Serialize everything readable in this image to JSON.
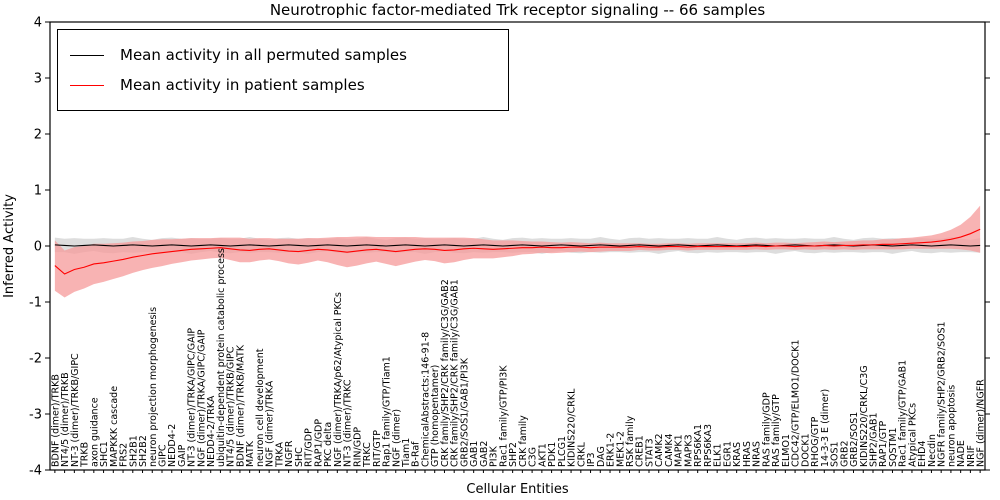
{
  "title": "Neurotrophic factor-mediated Trk receptor signaling -- 66 samples",
  "xlabel": "Cellular Entities",
  "ylabel": "Inferred Activity",
  "legend": {
    "permuted_label": "Mean activity in all permuted samples",
    "patient_label": "Mean activity in patient samples"
  },
  "colors": {
    "permuted_line": "#000000",
    "permuted_band": "#d9d9d9",
    "patient_line": "#ff0000",
    "patient_band": "#f59a9a",
    "axis": "#000000"
  },
  "chart_data": {
    "type": "line",
    "title": "Neurotrophic factor-mediated Trk receptor signaling -- 66 samples",
    "xlabel": "Cellular Entities",
    "ylabel": "Inferred Activity",
    "ylim": [
      -4,
      4
    ],
    "yticks": [
      -4,
      -3,
      -2,
      -1,
      0,
      1,
      2,
      3,
      4
    ],
    "grid": false,
    "legend_position": "upper left",
    "categories": [
      "BDNF (dimer)/TRKB",
      "NT4/5 (dimer)/TRKB",
      "NT-3 (dimer)/TRKB/GIPC",
      "TRKB",
      "axon guidance",
      "SHC1",
      "MAPKKK cascade",
      "FRS2",
      "SH2B1",
      "SH2B2",
      "neuron projection morphogenesis",
      "GIPC",
      "NEDD4-2",
      "GAIP",
      "NT-3 (dimer)/TRKA/GIPC/GAIP",
      "NGF (dimer)/TRKA/GIPC/GAIP",
      "NEDD4-2/TRKA",
      "ubiquitin-dependent protein catabolic process",
      "NT4/5 (dimer)/TRKB/GIPC",
      "BDNF (dimer)/TRKB/MATK",
      "MATK",
      "neuron cell development",
      "NGF (dimer)/TRKA",
      "TRKA",
      "NGFR",
      "SHC",
      "RIT/GDP",
      "RAP1/GDP",
      "PKC delta",
      "NGF (dimer)/TRKA/p62/Atypical PKCs",
      "NT-3 (dimer)/TRKC",
      "RIN/GDP",
      "TRKC",
      "RIT/GTP",
      "Rap1 family/GTP/Tiam1",
      "NGF (dimer)",
      "Tiam1",
      "B-Raf",
      "ChemicalAbstracts:146-91-8",
      "GTP (homopentamer)",
      "CRK family/SHP2/CRK family/C3G/GAB2",
      "CRK family/SHP2/CRK family/C3G/GAB1",
      "GRB2/SOS1/GAB1/PI3K",
      "GAB1",
      "GAB2",
      "PI3K",
      "Rac1 family/GTP/PI3K",
      "SHP2",
      "CRK family",
      "C3G",
      "AKT1",
      "PDK1",
      "PLCG1",
      "KIDINS220/CRKL",
      "CRKL",
      "IP3",
      "DAG",
      "ERK1-2",
      "MEK1-2",
      "RSK family",
      "CREB1",
      "STAT3",
      "CAMK2",
      "CAMK4",
      "MAPK1",
      "MAPK3",
      "RPS6KA1",
      "RPS6KA3",
      "ELK1",
      "EGR1",
      "KRAS",
      "HRAS",
      "NRAS",
      "RAS family/GDP",
      "RAS family/GTP",
      "ELMO1",
      "CDC42/GTP/ELMO1/DOCK1",
      "DOCK1",
      "RHOG/GTP",
      "14-3-3 E (dimer)",
      "SOS1",
      "GRB2",
      "GRB2/SOS1",
      "KIDINS220/CRKL/C3G",
      "SHP2/GAB1",
      "RAP1/GTP",
      "SQSTM1",
      "Rac1 family/GTP/GAB1",
      "Atypical PKCs",
      "EHD4",
      "Necdin",
      "NGFR family/SHP2/GRB2/SOS1",
      "neuron apoptosis",
      "NADE",
      "NRIF",
      "NGF (dimer)/NGFR"
    ],
    "series": [
      {
        "name": "Mean activity in all permuted samples",
        "color": "#000000",
        "band_color": "#d9d9d9",
        "values": [
          0.02,
          0.01,
          0.0,
          0.01,
          0.02,
          0.01,
          0.0,
          0.01,
          0.02,
          0.01,
          0.0,
          0.01,
          0.02,
          0.01,
          0.0,
          0.01,
          0.02,
          0.01,
          0.0,
          0.01,
          0.02,
          0.01,
          0.0,
          0.01,
          0.02,
          0.01,
          0.0,
          0.01,
          0.02,
          0.01,
          0.0,
          0.01,
          0.02,
          0.01,
          0.0,
          0.01,
          0.02,
          0.01,
          0.0,
          0.01,
          0.02,
          0.01,
          0.0,
          0.01,
          0.02,
          0.01,
          0.0,
          0.01,
          0.02,
          0.01,
          0.0,
          0.01,
          0.02,
          0.01,
          0.0,
          0.01,
          0.02,
          0.01,
          0.0,
          0.01,
          0.02,
          0.01,
          0.0,
          0.01,
          0.02,
          0.01,
          0.0,
          0.01,
          0.02,
          0.01,
          0.0,
          0.01,
          0.02,
          0.01,
          0.0,
          0.01,
          0.02,
          0.01,
          0.0,
          0.01,
          0.02,
          0.01,
          0.0,
          0.01,
          0.02,
          0.01,
          0.0,
          0.01,
          0.02,
          0.01,
          0.0,
          0.01,
          0.02,
          0.01,
          0.0,
          0.01
        ],
        "std": [
          0.13,
          0.12,
          0.14,
          0.12,
          0.11,
          0.13,
          0.13,
          0.12,
          0.14,
          0.12,
          0.11,
          0.13,
          0.13,
          0.12,
          0.14,
          0.12,
          0.11,
          0.13,
          0.13,
          0.12,
          0.14,
          0.12,
          0.11,
          0.13,
          0.13,
          0.12,
          0.14,
          0.12,
          0.11,
          0.13,
          0.13,
          0.12,
          0.14,
          0.12,
          0.11,
          0.13,
          0.13,
          0.12,
          0.14,
          0.12,
          0.11,
          0.13,
          0.13,
          0.12,
          0.14,
          0.12,
          0.11,
          0.13,
          0.13,
          0.12,
          0.14,
          0.12,
          0.11,
          0.13,
          0.13,
          0.12,
          0.14,
          0.12,
          0.11,
          0.13,
          0.13,
          0.12,
          0.14,
          0.12,
          0.11,
          0.13,
          0.13,
          0.12,
          0.14,
          0.12,
          0.11,
          0.13,
          0.13,
          0.12,
          0.14,
          0.12,
          0.11,
          0.13,
          0.13,
          0.12,
          0.14,
          0.12,
          0.11,
          0.13,
          0.13,
          0.12,
          0.14,
          0.12,
          0.11,
          0.13,
          0.13,
          0.12,
          0.14,
          0.12,
          0.11,
          0.13
        ]
      },
      {
        "name": "Mean activity in patient samples",
        "color": "#ff0000",
        "band_color": "#f59a9a",
        "values": [
          -0.35,
          -0.5,
          -0.42,
          -0.38,
          -0.32,
          -0.3,
          -0.27,
          -0.24,
          -0.2,
          -0.17,
          -0.14,
          -0.12,
          -0.1,
          -0.08,
          -0.06,
          -0.05,
          -0.04,
          -0.03,
          -0.05,
          -0.07,
          -0.08,
          -0.06,
          -0.05,
          -0.07,
          -0.09,
          -0.1,
          -0.08,
          -0.06,
          -0.07,
          -0.09,
          -0.11,
          -0.09,
          -0.07,
          -0.06,
          -0.08,
          -0.1,
          -0.08,
          -0.06,
          -0.05,
          -0.06,
          -0.08,
          -0.07,
          -0.05,
          -0.04,
          -0.05,
          -0.06,
          -0.05,
          -0.04,
          -0.03,
          -0.03,
          -0.02,
          -0.03,
          -0.03,
          -0.02,
          -0.02,
          -0.03,
          -0.02,
          -0.02,
          -0.02,
          -0.02,
          -0.01,
          -0.02,
          -0.02,
          -0.01,
          -0.01,
          -0.02,
          -0.01,
          -0.01,
          -0.01,
          -0.01,
          -0.01,
          -0.01,
          0.0,
          -0.01,
          0.0,
          0.0,
          -0.01,
          0.0,
          0.0,
          0.01,
          0.0,
          0.01,
          0.01,
          0.02,
          0.02,
          0.03,
          0.03,
          0.04,
          0.05,
          0.06,
          0.07,
          0.09,
          0.12,
          0.16,
          0.22,
          0.3
        ],
        "std": [
          0.45,
          0.42,
          0.4,
          0.38,
          0.36,
          0.34,
          0.32,
          0.3,
          0.28,
          0.26,
          0.25,
          0.24,
          0.22,
          0.21,
          0.2,
          0.19,
          0.18,
          0.18,
          0.2,
          0.22,
          0.21,
          0.2,
          0.19,
          0.2,
          0.22,
          0.23,
          0.22,
          0.2,
          0.22,
          0.25,
          0.27,
          0.26,
          0.24,
          0.22,
          0.24,
          0.26,
          0.24,
          0.22,
          0.2,
          0.21,
          0.23,
          0.22,
          0.2,
          0.18,
          0.17,
          0.16,
          0.15,
          0.14,
          0.12,
          0.11,
          0.1,
          0.1,
          0.09,
          0.09,
          0.08,
          0.08,
          0.08,
          0.07,
          0.07,
          0.07,
          0.06,
          0.06,
          0.06,
          0.06,
          0.06,
          0.06,
          0.06,
          0.06,
          0.06,
          0.06,
          0.06,
          0.06,
          0.06,
          0.06,
          0.06,
          0.06,
          0.06,
          0.06,
          0.07,
          0.07,
          0.07,
          0.07,
          0.08,
          0.08,
          0.08,
          0.09,
          0.09,
          0.1,
          0.1,
          0.11,
          0.12,
          0.14,
          0.17,
          0.22,
          0.3,
          0.42
        ]
      }
    ]
  }
}
